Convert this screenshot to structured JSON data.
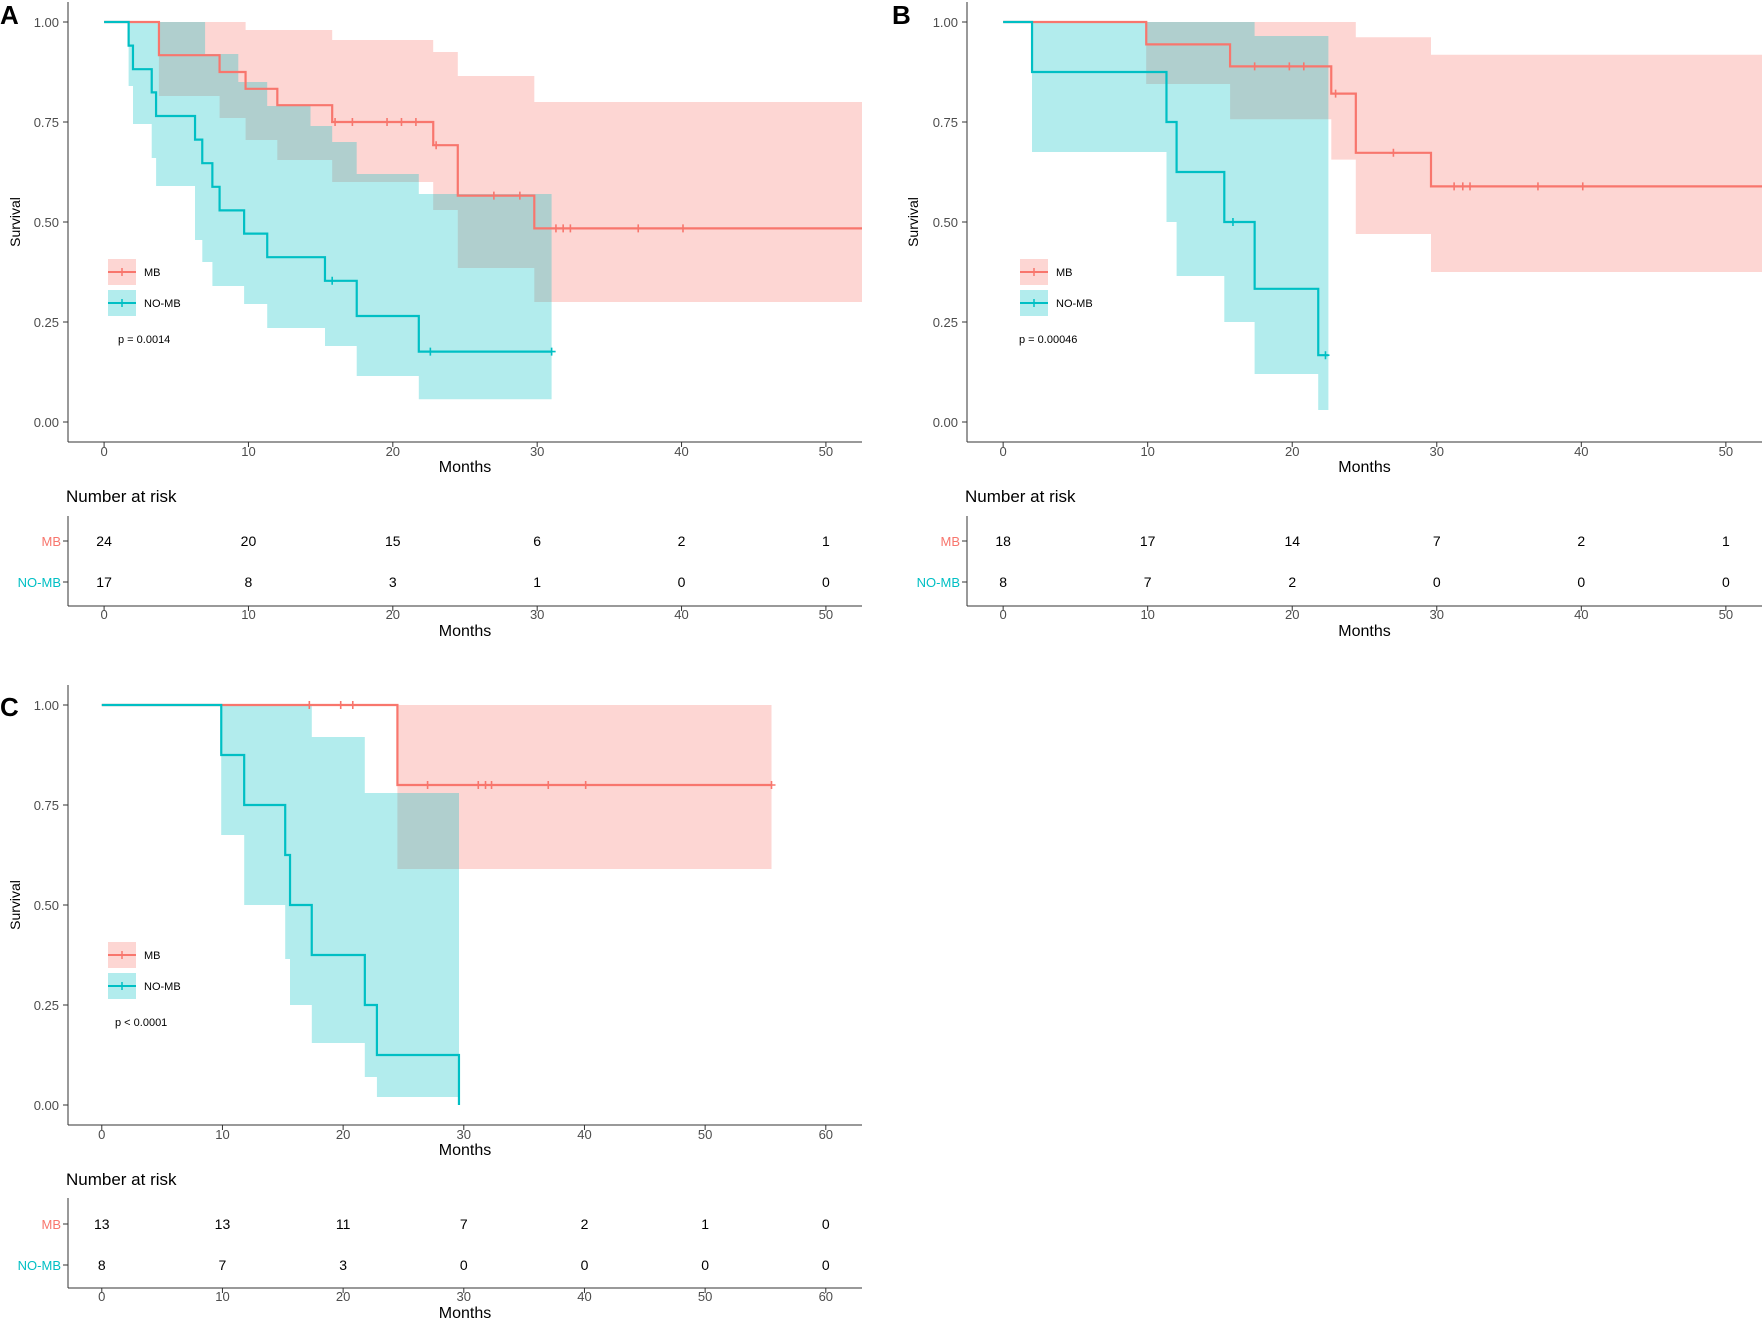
{
  "chart_data": [
    {
      "panel": "A",
      "type": "line",
      "subtype": "kaplan-meier",
      "xlabel": "Months",
      "ylabel": "Survival",
      "xlim": [
        -2.5,
        52.5
      ],
      "ylim": [
        -0.05,
        1.05
      ],
      "xticks": [
        0,
        10,
        20,
        30,
        40,
        50
      ],
      "yticks": [
        0.0,
        0.25,
        0.5,
        0.75,
        1.0
      ],
      "ytick_labels": [
        "0.00",
        "0.25",
        "0.50",
        "0.75",
        "1.00"
      ],
      "pvalue": "p = 0.0014",
      "risk_title": "Number at risk",
      "risk_times": [
        0,
        10,
        20,
        30,
        40,
        50
      ],
      "series": [
        {
          "name": "MB",
          "color": "#F8766D",
          "steps": [
            [
              0,
              1.0
            ],
            [
              3.8,
              0.917
            ],
            [
              8.0,
              0.875
            ],
            [
              9.8,
              0.833
            ],
            [
              12.0,
              0.792
            ],
            [
              15.8,
              0.75
            ],
            [
              22.8,
              0.692
            ],
            [
              24.5,
              0.566
            ],
            [
              29.8,
              0.484
            ],
            [
              52.5,
              0.484
            ]
          ],
          "ci_lower": [
            [
              0,
              1.0
            ],
            [
              3.8,
              0.815
            ],
            [
              8.0,
              0.76
            ],
            [
              9.8,
              0.705
            ],
            [
              12.0,
              0.655
            ],
            [
              15.8,
              0.6
            ],
            [
              22.8,
              0.53
            ],
            [
              24.5,
              0.385
            ],
            [
              29.8,
              0.3
            ],
            [
              52.5,
              0.3
            ]
          ],
          "ci_upper": [
            [
              0,
              1.0
            ],
            [
              3.8,
              1.0
            ],
            [
              9.8,
              0.98
            ],
            [
              15.8,
              0.955
            ],
            [
              22.8,
              0.925
            ],
            [
              24.5,
              0.865
            ],
            [
              29.8,
              0.8
            ],
            [
              52.5,
              0.8
            ]
          ],
          "censors": [
            [
              16.0,
              0.75
            ],
            [
              17.2,
              0.75
            ],
            [
              19.6,
              0.75
            ],
            [
              20.6,
              0.75
            ],
            [
              21.6,
              0.75
            ],
            [
              23.0,
              0.692
            ],
            [
              27.0,
              0.566
            ],
            [
              28.8,
              0.566
            ],
            [
              31.3,
              0.484
            ],
            [
              31.8,
              0.484
            ],
            [
              32.3,
              0.484
            ],
            [
              37.0,
              0.484
            ],
            [
              40.1,
              0.484
            ]
          ],
          "risk": [
            "24",
            "20",
            "15",
            "6",
            "2",
            "1"
          ]
        },
        {
          "name": "NO-MB",
          "color": "#00BFC4",
          "steps": [
            [
              0,
              1.0
            ],
            [
              1.7,
              0.941
            ],
            [
              2.0,
              0.882
            ],
            [
              3.3,
              0.824
            ],
            [
              3.6,
              0.765
            ],
            [
              6.3,
              0.706
            ],
            [
              6.8,
              0.647
            ],
            [
              7.5,
              0.588
            ],
            [
              8.0,
              0.529
            ],
            [
              9.7,
              0.471
            ],
            [
              11.3,
              0.412
            ],
            [
              15.3,
              0.353
            ],
            [
              17.5,
              0.265
            ],
            [
              21.8,
              0.176
            ],
            [
              31.0,
              0.176
            ]
          ],
          "ci_lower": [
            [
              0,
              1.0
            ],
            [
              1.7,
              0.84
            ],
            [
              2.0,
              0.745
            ],
            [
              3.3,
              0.66
            ],
            [
              3.6,
              0.59
            ],
            [
              6.3,
              0.455
            ],
            [
              6.8,
              0.4
            ],
            [
              7.5,
              0.34
            ],
            [
              9.7,
              0.295
            ],
            [
              11.3,
              0.235
            ],
            [
              15.3,
              0.19
            ],
            [
              17.5,
              0.115
            ],
            [
              21.8,
              0.057
            ],
            [
              31.0,
              0.057
            ]
          ],
          "ci_upper": [
            [
              0,
              1.0
            ],
            [
              7.0,
              0.92
            ],
            [
              9.3,
              0.85
            ],
            [
              11.3,
              0.79
            ],
            [
              14.3,
              0.74
            ],
            [
              15.8,
              0.7
            ],
            [
              17.5,
              0.62
            ],
            [
              21.8,
              0.57
            ],
            [
              31.0,
              0.57
            ]
          ],
          "censors": [
            [
              15.8,
              0.353
            ],
            [
              22.6,
              0.176
            ],
            [
              31.0,
              0.176
            ]
          ],
          "risk": [
            "17",
            "8",
            "3",
            "1",
            "0",
            "0"
          ]
        }
      ]
    },
    {
      "panel": "B",
      "type": "line",
      "subtype": "kaplan-meier",
      "xlabel": "Months",
      "ylabel": "Survival",
      "xlim": [
        -2.5,
        52.5
      ],
      "ylim": [
        -0.05,
        1.05
      ],
      "xticks": [
        0,
        10,
        20,
        30,
        40,
        50
      ],
      "yticks": [
        0.0,
        0.25,
        0.5,
        0.75,
        1.0
      ],
      "ytick_labels": [
        "0.00",
        "0.25",
        "0.50",
        "0.75",
        "1.00"
      ],
      "pvalue": "p = 0.00046",
      "risk_title": "Number at risk",
      "risk_times": [
        0,
        10,
        20,
        30,
        40,
        50
      ],
      "series": [
        {
          "name": "MB",
          "color": "#F8766D",
          "steps": [
            [
              0,
              1.0
            ],
            [
              9.9,
              0.944
            ],
            [
              15.7,
              0.889
            ],
            [
              22.7,
              0.821
            ],
            [
              24.4,
              0.673
            ],
            [
              29.6,
              0.589
            ],
            [
              52.5,
              0.589
            ]
          ],
          "ci_lower": [
            [
              0,
              1.0
            ],
            [
              9.9,
              0.845
            ],
            [
              15.7,
              0.757
            ],
            [
              22.7,
              0.656
            ],
            [
              24.4,
              0.47
            ],
            [
              29.6,
              0.375
            ],
            [
              52.5,
              0.375
            ]
          ],
          "ci_upper": [
            [
              0,
              1.0
            ],
            [
              24.4,
              0.962
            ],
            [
              29.6,
              0.918
            ],
            [
              52.5,
              0.918
            ]
          ],
          "censors": [
            [
              17.4,
              0.889
            ],
            [
              19.8,
              0.889
            ],
            [
              20.8,
              0.889
            ],
            [
              23.0,
              0.821
            ],
            [
              27.0,
              0.673
            ],
            [
              31.2,
              0.589
            ],
            [
              31.8,
              0.589
            ],
            [
              32.3,
              0.589
            ],
            [
              37.0,
              0.589
            ],
            [
              40.1,
              0.589
            ]
          ],
          "risk": [
            "18",
            "17",
            "14",
            "7",
            "2",
            "1"
          ]
        },
        {
          "name": "NO-MB",
          "color": "#00BFC4",
          "steps": [
            [
              0,
              1.0
            ],
            [
              2.0,
              0.875
            ],
            [
              11.3,
              0.75
            ],
            [
              12.0,
              0.625
            ],
            [
              15.3,
              0.5
            ],
            [
              17.4,
              0.333
            ],
            [
              21.8,
              0.167
            ],
            [
              22.5,
              0.167
            ]
          ],
          "ci_lower": [
            [
              0,
              1.0
            ],
            [
              2.0,
              0.675
            ],
            [
              11.3,
              0.5
            ],
            [
              12.0,
              0.365
            ],
            [
              15.3,
              0.25
            ],
            [
              17.4,
              0.12
            ],
            [
              21.8,
              0.03
            ],
            [
              22.5,
              0.03
            ]
          ],
          "ci_upper": [
            [
              0,
              1.0
            ],
            [
              17.4,
              0.965
            ],
            [
              22.5,
              0.965
            ]
          ],
          "censors": [
            [
              15.9,
              0.5
            ],
            [
              22.3,
              0.167
            ]
          ],
          "risk": [
            "8",
            "7",
            "2",
            "0",
            "0",
            "0"
          ]
        }
      ]
    },
    {
      "panel": "C",
      "type": "line",
      "subtype": "kaplan-meier",
      "xlabel": "Months",
      "ylabel": "Survival",
      "xlim": [
        -2.8,
        63.0
      ],
      "ylim": [
        -0.05,
        1.05
      ],
      "xticks": [
        0,
        10,
        20,
        30,
        40,
        50,
        60
      ],
      "yticks": [
        0.0,
        0.25,
        0.5,
        0.75,
        1.0
      ],
      "ytick_labels": [
        "0.00",
        "0.25",
        "0.50",
        "0.75",
        "1.00"
      ],
      "pvalue": "p < 0.0001",
      "risk_title": "Number at risk",
      "risk_times": [
        0,
        10,
        20,
        30,
        40,
        50,
        60
      ],
      "series": [
        {
          "name": "MB",
          "color": "#F8766D",
          "steps": [
            [
              0,
              1.0
            ],
            [
              24.5,
              0.8
            ],
            [
              55.5,
              0.8
            ]
          ],
          "ci_lower": [
            [
              0,
              1.0
            ],
            [
              24.5,
              0.59
            ],
            [
              55.5,
              0.59
            ]
          ],
          "ci_upper": [
            [
              0,
              1.0
            ],
            [
              55.5,
              1.0
            ]
          ],
          "censors": [
            [
              17.2,
              1.0
            ],
            [
              19.8,
              1.0
            ],
            [
              20.8,
              1.0
            ],
            [
              27.0,
              0.8
            ],
            [
              31.2,
              0.8
            ],
            [
              31.8,
              0.8
            ],
            [
              32.3,
              0.8
            ],
            [
              37.0,
              0.8
            ],
            [
              40.1,
              0.8
            ],
            [
              55.5,
              0.8
            ]
          ],
          "risk": [
            "13",
            "13",
            "11",
            "7",
            "2",
            "1",
            "0"
          ]
        },
        {
          "name": "NO-MB",
          "color": "#00BFC4",
          "steps": [
            [
              0,
              1.0
            ],
            [
              9.9,
              0.875
            ],
            [
              11.8,
              0.75
            ],
            [
              15.2,
              0.625
            ],
            [
              15.6,
              0.5
            ],
            [
              17.4,
              0.375
            ],
            [
              21.8,
              0.25
            ],
            [
              22.8,
              0.125
            ],
            [
              29.6,
              0.0
            ]
          ],
          "ci_lower": [
            [
              0,
              1.0
            ],
            [
              9.9,
              0.675
            ],
            [
              11.8,
              0.5
            ],
            [
              15.2,
              0.365
            ],
            [
              15.6,
              0.25
            ],
            [
              17.4,
              0.155
            ],
            [
              21.8,
              0.07
            ],
            [
              22.8,
              0.02
            ],
            [
              29.6,
              0.0
            ]
          ],
          "ci_upper": [
            [
              0,
              1.0
            ],
            [
              17.4,
              0.92
            ],
            [
              21.8,
              0.78
            ],
            [
              29.6,
              0.78
            ]
          ],
          "censors": [],
          "risk": [
            "8",
            "7",
            "3",
            "0",
            "0",
            "0",
            "0"
          ]
        }
      ]
    }
  ]
}
